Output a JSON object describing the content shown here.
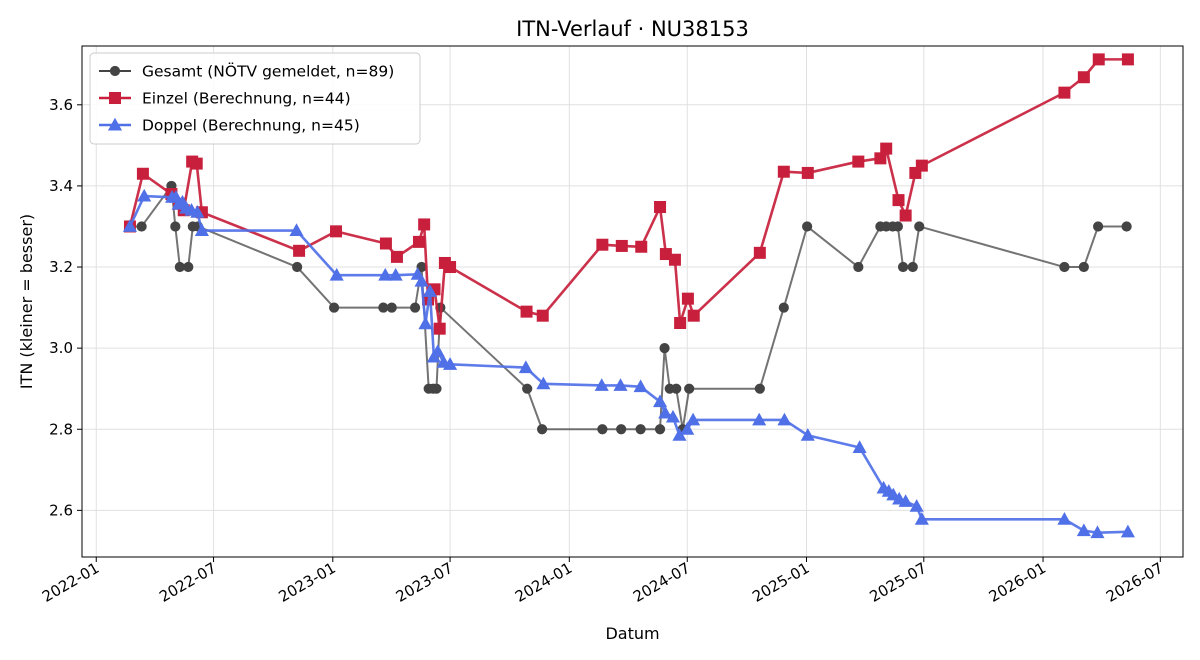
{
  "chart_data": {
    "type": "line",
    "title": "ITN-Verlauf · NU38153",
    "xlabel": "Datum",
    "ylabel": "ITN  (kleiner = besser)",
    "x_is_date": true,
    "xlim": [
      "2021-12-10",
      "2026-08-05"
    ],
    "ylim": [
      2.485,
      3.745
    ],
    "x_ticks": [
      {
        "date": "2022-01-01",
        "label": "2022-01"
      },
      {
        "date": "2022-07-01",
        "label": "2022-07"
      },
      {
        "date": "2023-01-01",
        "label": "2023-01"
      },
      {
        "date": "2023-07-01",
        "label": "2023-07"
      },
      {
        "date": "2024-01-01",
        "label": "2024-01"
      },
      {
        "date": "2024-07-01",
        "label": "2024-07"
      },
      {
        "date": "2025-01-01",
        "label": "2025-01"
      },
      {
        "date": "2025-07-01",
        "label": "2025-07"
      },
      {
        "date": "2026-01-01",
        "label": "2026-01"
      },
      {
        "date": "2026-07-01",
        "label": "2026-07"
      }
    ],
    "y_ticks": [
      {
        "value": 2.6,
        "label": "2.6"
      },
      {
        "value": 2.8,
        "label": "2.8"
      },
      {
        "value": 3.0,
        "label": "3.0"
      },
      {
        "value": 3.2,
        "label": "3.2"
      },
      {
        "value": 3.4,
        "label": "3.4"
      },
      {
        "value": 3.6,
        "label": "3.6"
      }
    ],
    "grid": true,
    "legend_position": "top-left",
    "series": [
      {
        "name": "Gesamt (NÖTV gemeldet, n=89)",
        "color": "#444444",
        "marker": "circle",
        "points": [
          [
            "2022-02-22",
            3.3
          ],
          [
            "2022-03-12",
            3.3
          ],
          [
            "2022-04-27",
            3.4
          ],
          [
            "2022-05-03",
            3.3
          ],
          [
            "2022-05-10",
            3.2
          ],
          [
            "2022-05-23",
            3.2
          ],
          [
            "2022-05-30",
            3.3
          ],
          [
            "2022-06-07",
            3.3
          ],
          [
            "2022-11-07",
            3.2
          ],
          [
            "2023-01-03",
            3.1
          ],
          [
            "2023-03-20",
            3.1
          ],
          [
            "2023-04-02",
            3.1
          ],
          [
            "2023-05-08",
            3.1
          ],
          [
            "2023-05-18",
            3.2
          ],
          [
            "2023-05-29",
            2.9
          ],
          [
            "2023-06-05",
            2.9
          ],
          [
            "2023-06-10",
            2.9
          ],
          [
            "2023-06-16",
            3.1
          ],
          [
            "2023-10-28",
            2.9
          ],
          [
            "2023-11-20",
            2.8
          ],
          [
            "2024-02-21",
            2.8
          ],
          [
            "2024-03-21",
            2.8
          ],
          [
            "2024-04-20",
            2.8
          ],
          [
            "2024-05-20",
            2.8
          ],
          [
            "2024-05-27",
            3.0
          ],
          [
            "2024-06-04",
            2.9
          ],
          [
            "2024-06-14",
            2.9
          ],
          [
            "2024-06-24",
            2.8
          ],
          [
            "2024-07-04",
            2.9
          ],
          [
            "2024-10-21",
            2.9
          ],
          [
            "2024-11-27",
            3.1
          ],
          [
            "2025-01-02",
            3.3
          ],
          [
            "2025-03-22",
            3.2
          ],
          [
            "2025-04-25",
            3.3
          ],
          [
            "2025-05-04",
            3.3
          ],
          [
            "2025-05-14",
            3.3
          ],
          [
            "2025-05-22",
            3.3
          ],
          [
            "2025-05-30",
            3.2
          ],
          [
            "2025-06-14",
            3.2
          ],
          [
            "2025-06-24",
            3.3
          ],
          [
            "2026-02-03",
            3.2
          ],
          [
            "2026-03-05",
            3.2
          ],
          [
            "2026-03-27",
            3.3
          ],
          [
            "2026-05-10",
            3.3
          ]
        ]
      },
      {
        "name": "Einzel (Berechnung, n=44)",
        "color": "#c8203c",
        "marker": "square",
        "points": [
          [
            "2022-02-22",
            3.3
          ],
          [
            "2022-03-14",
            3.43
          ],
          [
            "2022-04-27",
            3.38
          ],
          [
            "2022-05-09",
            3.356
          ],
          [
            "2022-05-16",
            3.34
          ],
          [
            "2022-05-29",
            3.46
          ],
          [
            "2022-06-05",
            3.455
          ],
          [
            "2022-06-13",
            3.335
          ],
          [
            "2022-11-10",
            3.24
          ],
          [
            "2023-01-06",
            3.288
          ],
          [
            "2023-03-24",
            3.258
          ],
          [
            "2023-04-10",
            3.225
          ],
          [
            "2023-05-14",
            3.262
          ],
          [
            "2023-05-22",
            3.305
          ],
          [
            "2023-05-28",
            3.12
          ],
          [
            "2023-06-07",
            3.145
          ],
          [
            "2023-06-15",
            3.048
          ],
          [
            "2023-06-23",
            3.21
          ],
          [
            "2023-07-01",
            3.2
          ],
          [
            "2023-10-27",
            3.09
          ],
          [
            "2023-11-21",
            3.08
          ],
          [
            "2024-02-21",
            3.255
          ],
          [
            "2024-03-22",
            3.252
          ],
          [
            "2024-04-21",
            3.25
          ],
          [
            "2024-05-20",
            3.348
          ],
          [
            "2024-05-29",
            3.232
          ],
          [
            "2024-06-12",
            3.218
          ],
          [
            "2024-06-20",
            3.062
          ],
          [
            "2024-07-02",
            3.122
          ],
          [
            "2024-07-11",
            3.08
          ],
          [
            "2024-10-21",
            3.235
          ],
          [
            "2024-11-27",
            3.435
          ],
          [
            "2025-01-03",
            3.432
          ],
          [
            "2025-03-22",
            3.46
          ],
          [
            "2025-04-25",
            3.468
          ],
          [
            "2025-05-04",
            3.492
          ],
          [
            "2025-05-23",
            3.365
          ],
          [
            "2025-06-03",
            3.327
          ],
          [
            "2025-06-18",
            3.432
          ],
          [
            "2025-06-28",
            3.45
          ],
          [
            "2026-02-03",
            3.63
          ],
          [
            "2026-03-05",
            3.668
          ],
          [
            "2026-03-28",
            3.712
          ],
          [
            "2026-05-12",
            3.712
          ]
        ]
      },
      {
        "name": "Doppel (Berechnung, n=45)",
        "color": "#5070e8",
        "marker": "triangle",
        "points": [
          [
            "2022-02-22",
            3.3
          ],
          [
            "2022-03-16",
            3.375
          ],
          [
            "2022-04-28",
            3.372
          ],
          [
            "2022-05-04",
            3.372
          ],
          [
            "2022-05-08",
            3.355
          ],
          [
            "2022-05-14",
            3.36
          ],
          [
            "2022-05-20",
            3.345
          ],
          [
            "2022-05-28",
            3.34
          ],
          [
            "2022-06-06",
            3.335
          ],
          [
            "2022-06-13",
            3.29
          ],
          [
            "2022-11-06",
            3.29
          ],
          [
            "2023-01-07",
            3.18
          ],
          [
            "2023-03-23",
            3.18
          ],
          [
            "2023-04-08",
            3.18
          ],
          [
            "2023-05-12",
            3.182
          ],
          [
            "2023-05-18",
            3.165
          ],
          [
            "2023-05-24",
            3.06
          ],
          [
            "2023-05-31",
            3.14
          ],
          [
            "2023-06-06",
            2.978
          ],
          [
            "2023-06-12",
            2.992
          ],
          [
            "2023-06-21",
            2.965
          ],
          [
            "2023-07-01",
            2.96
          ],
          [
            "2023-10-26",
            2.952
          ],
          [
            "2023-11-22",
            2.912
          ],
          [
            "2024-02-20",
            2.908
          ],
          [
            "2024-03-20",
            2.908
          ],
          [
            "2024-04-20",
            2.905
          ],
          [
            "2024-05-20",
            2.868
          ],
          [
            "2024-05-28",
            2.84
          ],
          [
            "2024-06-09",
            2.83
          ],
          [
            "2024-06-19",
            2.785
          ],
          [
            "2024-07-01",
            2.8
          ],
          [
            "2024-07-10",
            2.823
          ],
          [
            "2024-10-20",
            2.823
          ],
          [
            "2024-11-28",
            2.823
          ],
          [
            "2025-01-03",
            2.785
          ],
          [
            "2025-03-24",
            2.755
          ],
          [
            "2025-04-30",
            2.655
          ],
          [
            "2025-05-08",
            2.647
          ],
          [
            "2025-05-15",
            2.638
          ],
          [
            "2025-05-24",
            2.628
          ],
          [
            "2025-06-03",
            2.622
          ],
          [
            "2025-06-20",
            2.61
          ],
          [
            "2025-06-28",
            2.578
          ],
          [
            "2026-02-03",
            2.578
          ],
          [
            "2026-03-05",
            2.55
          ],
          [
            "2026-03-26",
            2.545
          ],
          [
            "2026-05-12",
            2.547
          ]
        ]
      }
    ]
  }
}
